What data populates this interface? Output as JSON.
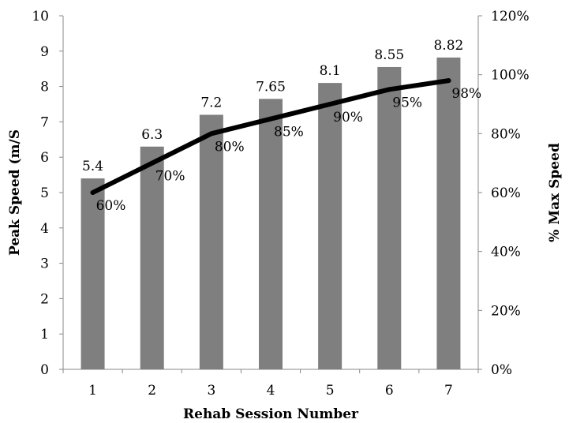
{
  "chart_data": {
    "type": "bar+line",
    "categories": [
      "1",
      "2",
      "3",
      "4",
      "5",
      "6",
      "7"
    ],
    "series": [
      {
        "type": "bar",
        "axis": "left",
        "values": [
          5.4,
          6.3,
          7.2,
          7.65,
          8.1,
          8.55,
          8.82
        ],
        "data_labels": [
          "5.4",
          "6.3",
          "7.2",
          "7.65",
          "8.1",
          "8.55",
          "8.82"
        ],
        "color": "#7f7f7f"
      },
      {
        "type": "line",
        "axis": "right",
        "values": [
          60,
          70,
          80,
          85,
          90,
          95,
          98
        ],
        "data_labels": [
          "60%",
          "70%",
          "80%",
          "85%",
          "90%",
          "95%",
          "98%"
        ],
        "color": "#000000"
      }
    ],
    "xlabel": "Rehab Session Number",
    "ylabel": "Peak Speed (m/S",
    "y2label": "% Max Speed",
    "ylim": [
      0,
      10
    ],
    "y2lim": [
      0,
      120
    ],
    "yticks": [
      "0",
      "1",
      "2",
      "3",
      "4",
      "5",
      "6",
      "7",
      "8",
      "9",
      "10"
    ],
    "y2ticks": [
      "0%",
      "20%",
      "40%",
      "60%",
      "80%",
      "100%",
      "120%"
    ],
    "grid": false,
    "legend": "none"
  }
}
